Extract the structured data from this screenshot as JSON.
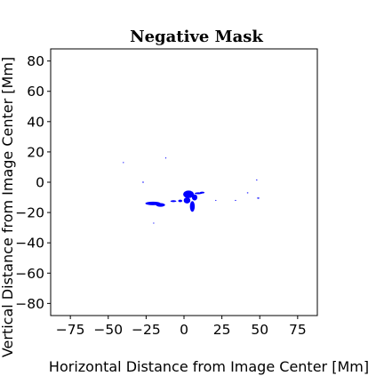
{
  "chart_data": {
    "type": "scatter",
    "title": "Negative Mask",
    "xlabel": "Horizontal Distance from Image Center [Mm]",
    "ylabel": "Vertical Distance from Image Center [Mm]",
    "xlim": [
      -88,
      88
    ],
    "ylim": [
      -88,
      88
    ],
    "xticks": [
      -75,
      -50,
      -25,
      0,
      25,
      50,
      75
    ],
    "xtick_labels": [
      "−75",
      "−50",
      "−25",
      "0",
      "25",
      "50",
      "75"
    ],
    "yticks": [
      80,
      60,
      40,
      20,
      0,
      -20,
      -40,
      -60,
      -80
    ],
    "ytick_labels": [
      "80",
      "60",
      "40",
      "20",
      "0",
      "−20",
      "−40",
      "−60",
      "−80"
    ],
    "grid": false,
    "mask_color": "#0000ff",
    "regions": [
      {
        "shape": "ellipse",
        "cx": -20.5,
        "cy": -14.0,
        "rx": 5.0,
        "ry": 1.2
      },
      {
        "shape": "ellipse",
        "cx": -15.5,
        "cy": -15.0,
        "rx": 3.0,
        "ry": 1.2
      },
      {
        "shape": "ellipse",
        "cx": -7.0,
        "cy": -12.5,
        "rx": 2.0,
        "ry": 0.6
      },
      {
        "shape": "ellipse",
        "cx": -2.5,
        "cy": -12.3,
        "rx": 1.3,
        "ry": 0.8
      },
      {
        "shape": "ellipse",
        "cx": 3.0,
        "cy": -8.0,
        "rx": 3.5,
        "ry": 2.5
      },
      {
        "shape": "ellipse",
        "cx": 2.0,
        "cy": -12.0,
        "rx": 2.2,
        "ry": 2.0
      },
      {
        "shape": "ellipse",
        "cx": 7.0,
        "cy": -10.0,
        "rx": 1.8,
        "ry": 2.0
      },
      {
        "shape": "ellipse",
        "cx": 5.5,
        "cy": -16.0,
        "rx": 1.6,
        "ry": 3.5
      },
      {
        "shape": "ellipse",
        "cx": 9.5,
        "cy": -7.3,
        "rx": 2.5,
        "ry": 0.6
      },
      {
        "shape": "ellipse",
        "cx": 12.0,
        "cy": -6.8,
        "rx": 1.5,
        "ry": 0.6
      },
      {
        "shape": "ellipse",
        "cx": -27.0,
        "cy": 0.0,
        "rx": 0.5,
        "ry": 0.4
      },
      {
        "shape": "ellipse",
        "cx": 49.0,
        "cy": -10.5,
        "rx": 0.8,
        "ry": 0.4
      },
      {
        "shape": "ellipse",
        "cx": 42.0,
        "cy": -7.0,
        "rx": 0.5,
        "ry": 0.3
      },
      {
        "shape": "ellipse",
        "cx": 48.0,
        "cy": 1.5,
        "rx": 0.4,
        "ry": 0.3
      },
      {
        "shape": "ellipse",
        "cx": 34.0,
        "cy": -12.0,
        "rx": 0.4,
        "ry": 0.3
      },
      {
        "shape": "ellipse",
        "cx": -40.0,
        "cy": 13.0,
        "rx": 0.3,
        "ry": 0.3
      },
      {
        "shape": "ellipse",
        "cx": -12.0,
        "cy": 16.0,
        "rx": 0.3,
        "ry": 0.3
      },
      {
        "shape": "ellipse",
        "cx": 21.0,
        "cy": -12.0,
        "rx": 0.3,
        "ry": 0.3
      },
      {
        "shape": "ellipse",
        "cx": -20.0,
        "cy": -27.0,
        "rx": 0.3,
        "ry": 0.3
      }
    ]
  }
}
